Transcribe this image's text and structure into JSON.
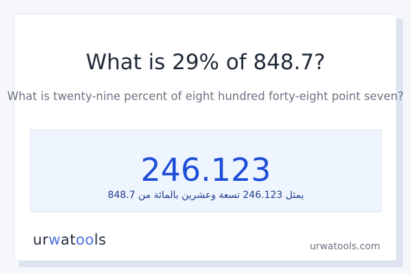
{
  "question": {
    "title": "What is 29% of 848.7?",
    "subtitle": "What is twenty-nine percent of eight hundred forty-eight point seven?"
  },
  "result": {
    "value": "246.123",
    "arabic_text": "يمثل 246.123 تسعة وعشرين بالمائة من 848.7"
  },
  "footer": {
    "logo_text": "urwatools",
    "site": "urwatools.com"
  },
  "colors": {
    "accent": "#1d4ed8",
    "logo_accent": "#4f6fe0",
    "result_bg": "#eef5fe"
  }
}
